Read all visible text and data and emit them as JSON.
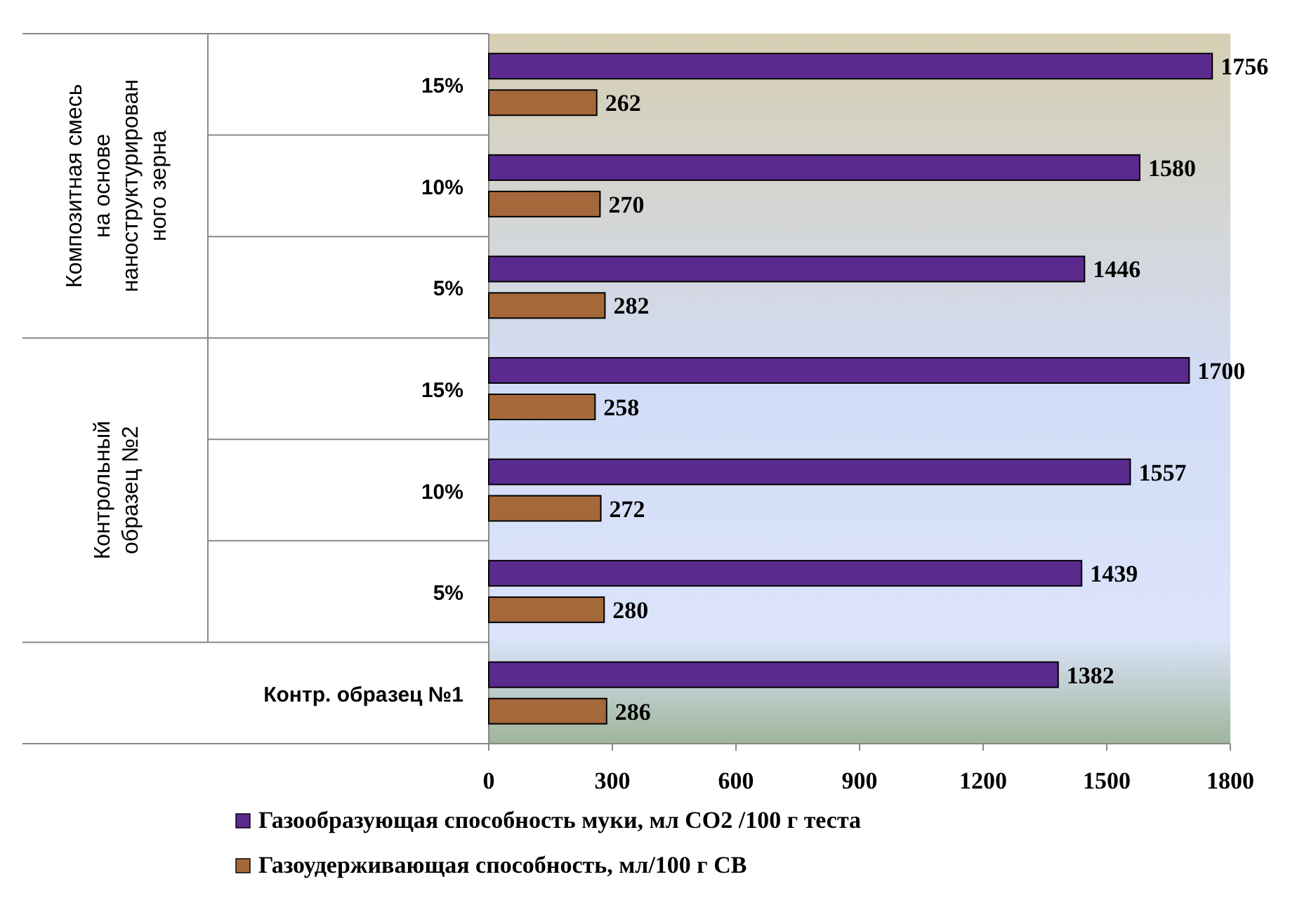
{
  "chart_data": {
    "type": "bar",
    "orientation": "horizontal",
    "categories": [
      "15%",
      "10%",
      "5%",
      "15%",
      "10%",
      "5%",
      "Контр. образец №1"
    ],
    "series": [
      {
        "name": "Газообразующая способность муки, мл CO2 /100 г теста",
        "color": "#5b2a8e",
        "values": [
          1756,
          1580,
          1446,
          1700,
          1557,
          1439,
          1382
        ]
      },
      {
        "name": "Газоудерживающая способность, мл/100 г СВ",
        "color": "#a5683a",
        "values": [
          262,
          270,
          282,
          258,
          272,
          280,
          286
        ]
      }
    ],
    "xlim": [
      0,
      1800
    ],
    "xticks": [
      0,
      300,
      600,
      900,
      1200,
      1500,
      1800
    ],
    "data_labels": true,
    "legend": "bottom",
    "grid": false,
    "annotations": [
      "Композитная смесь на основе наноструктурированного зерна",
      "Контрольный образец №2"
    ]
  }
}
